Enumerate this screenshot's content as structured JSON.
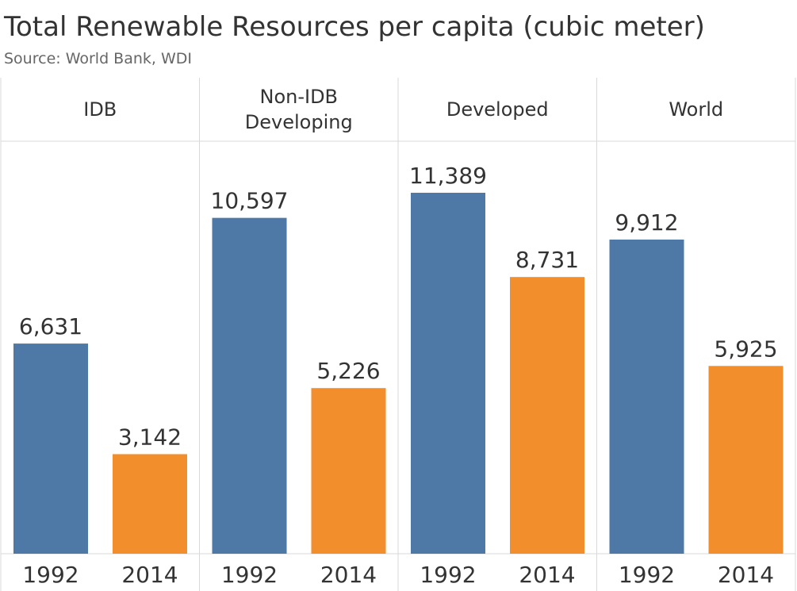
{
  "header": {
    "title": "Total Renewable Resources per capita (cubic meter)",
    "subtitle": "Source: World Bank, WDI"
  },
  "chart_data": {
    "type": "bar",
    "title": "Total Renewable Resources per capita (cubic meter)",
    "subtitle": "Source: World Bank, WDI",
    "panels": [
      {
        "label": [
          "IDB"
        ],
        "categories": [
          "1992",
          "2014"
        ],
        "values": [
          6631,
          3142
        ],
        "value_labels": [
          "6,631",
          "3,142"
        ]
      },
      {
        "label": [
          "Non-IDB",
          "Developing"
        ],
        "categories": [
          "1992",
          "2014"
        ],
        "values": [
          10597,
          5226
        ],
        "value_labels": [
          "10,597",
          "5,226"
        ]
      },
      {
        "label": [
          "Developed"
        ],
        "categories": [
          "1992",
          "2014"
        ],
        "values": [
          11389,
          8731
        ],
        "value_labels": [
          "11,389",
          "8,731"
        ]
      },
      {
        "label": [
          "World"
        ],
        "categories": [
          "1992",
          "2014"
        ],
        "values": [
          9912,
          5925
        ],
        "value_labels": [
          "9,912",
          "5,925"
        ]
      }
    ],
    "ylim": [
      0,
      11389
    ],
    "colors": {
      "1992": "#4e79a7",
      "2014": "#f28e2b"
    },
    "grid": false,
    "legend": "none"
  }
}
